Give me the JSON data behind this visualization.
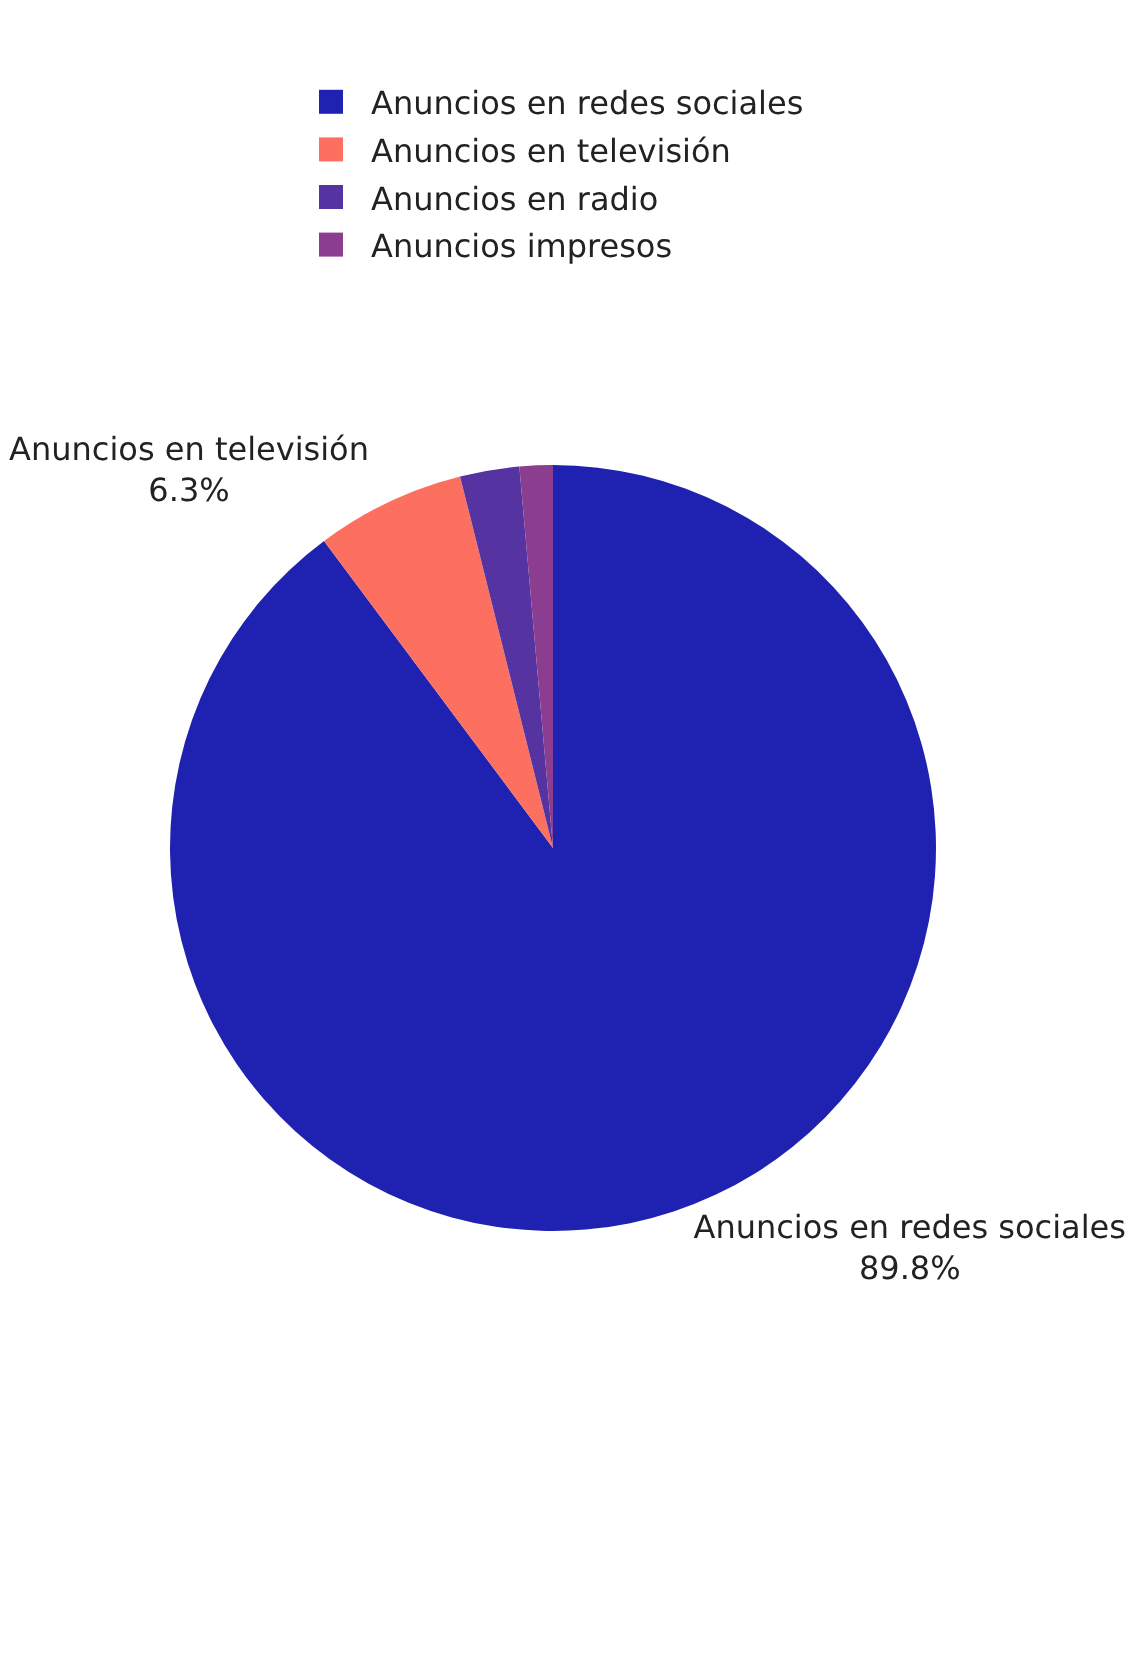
{
  "chart_data": {
    "type": "pie",
    "categories": [
      "Anuncios en redes sociales",
      "Anuncios en televisión",
      "Anuncios en radio",
      "Anuncios impresos"
    ],
    "values": [
      89.8,
      6.3,
      2.5,
      1.4
    ],
    "value_labels": [
      "89.8%",
      "6.3%",
      null,
      null
    ],
    "colors": [
      "#1f22b0",
      "#fd6f5f",
      "#5533a0",
      "#8b3d8f"
    ],
    "legend": "top"
  }
}
